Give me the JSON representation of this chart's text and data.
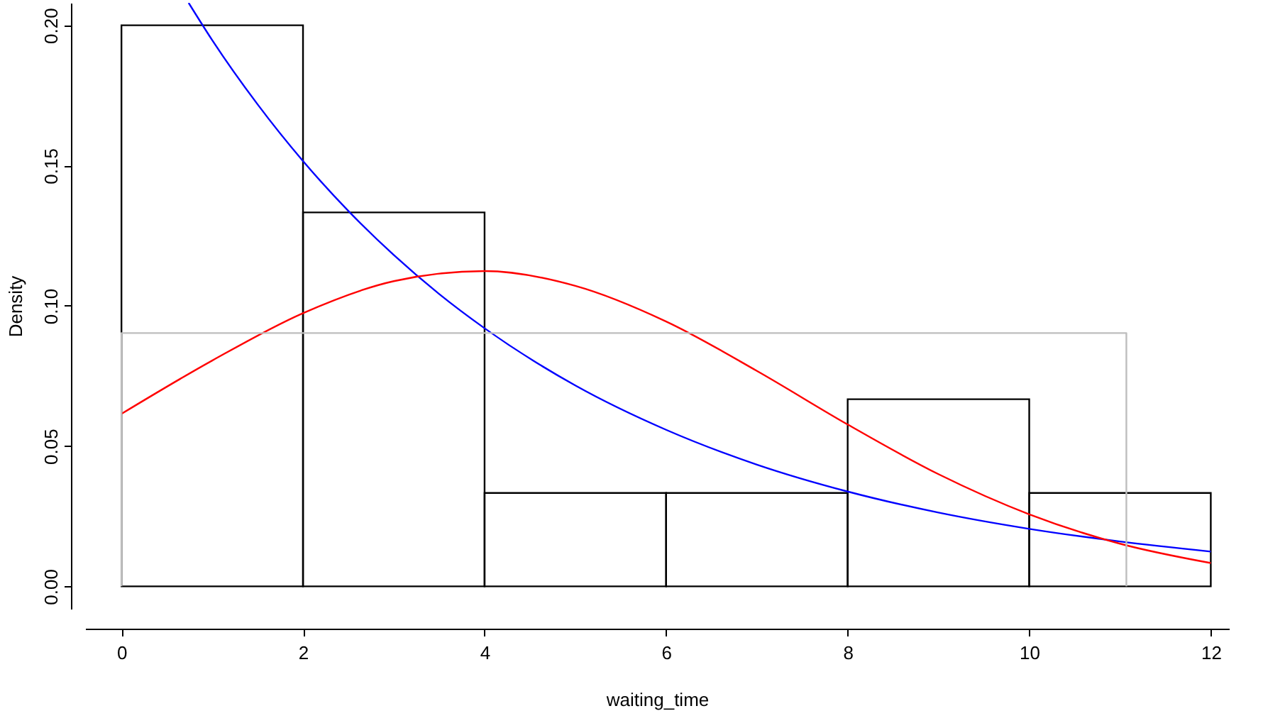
{
  "chart_data": {
    "type": "histogram",
    "xlabel": "waiting_time",
    "ylabel": "Density",
    "bins": [
      0,
      2,
      4,
      6,
      8,
      10,
      12
    ],
    "values": [
      0.2,
      0.1333,
      0.0333,
      0.0333,
      0.0667,
      0.0333
    ],
    "color": "#000000",
    "series": [
      {
        "type": "line",
        "color": "#0000ff",
        "x": [
          0.74,
          1,
          1.5,
          2,
          2.5,
          3,
          3.5,
          4,
          5,
          6,
          7,
          8,
          9,
          10,
          11,
          12
        ],
        "values": [
          0.208,
          0.1947,
          0.1718,
          0.1516,
          0.1338,
          0.1181,
          0.1042,
          0.092,
          0.0716,
          0.0558,
          0.0434,
          0.0338,
          0.0263,
          0.0205,
          0.016,
          0.0124
        ]
      },
      {
        "type": "line",
        "color": "#ff0000",
        "x": [
          0,
          1,
          2,
          3,
          4,
          5,
          6,
          7,
          8,
          9,
          10,
          11,
          12
        ],
        "values": [
          0.0615,
          0.0805,
          0.0974,
          0.1088,
          0.1124,
          0.1071,
          0.0944,
          0.0768,
          0.0577,
          0.04,
          0.0257,
          0.0152,
          0.0083
        ]
      },
      {
        "type": "line",
        "color": "#bebebe",
        "x": [
          0,
          0,
          11.07,
          11.07
        ],
        "values": [
          0,
          0.0903,
          0.0903,
          0
        ]
      }
    ],
    "xlim": [
      -0.4,
      12.2
    ],
    "ylim": [
      -0.008,
      0.208
    ],
    "xticks": [
      0,
      2,
      4,
      6,
      8,
      10,
      12
    ],
    "yticks": [
      {
        "value": 0,
        "label": "0.00"
      },
      {
        "value": 0.05,
        "label": "0.05"
      },
      {
        "value": 0.1,
        "label": "0.10"
      },
      {
        "value": 0.15,
        "label": "0.15"
      },
      {
        "value": 0.2,
        "label": "0.20"
      }
    ],
    "grid": false
  }
}
